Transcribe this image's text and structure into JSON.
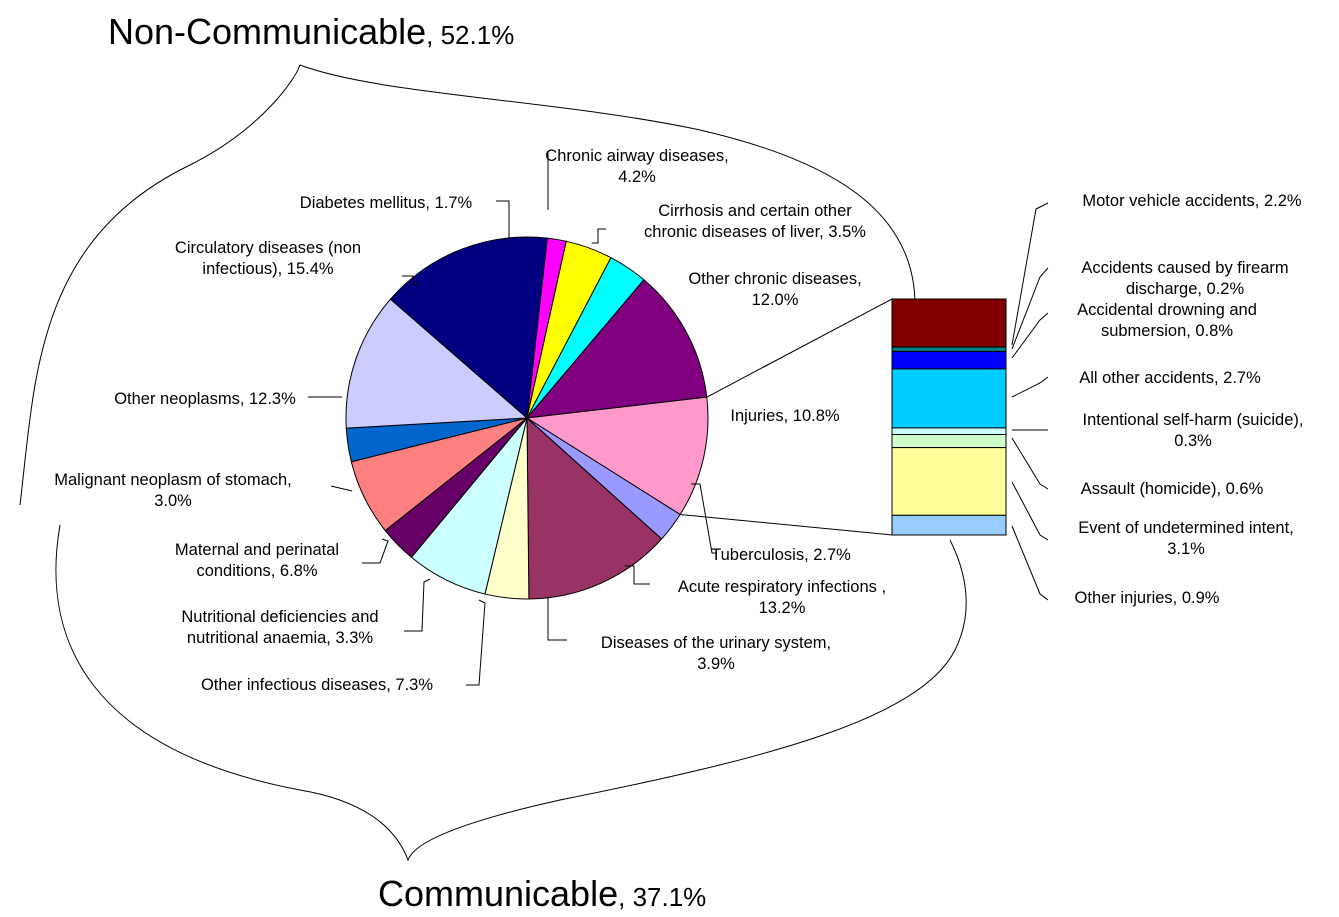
{
  "chart_data": {
    "type": "pie",
    "group_labels": {
      "non_communicable": {
        "name": "Non-Communicable",
        "value": "52.1%"
      },
      "communicable": {
        "name": "Communicable",
        "value": "37.1%"
      }
    },
    "pie": {
      "slices": [
        {
          "name": "Diabetes mellitus",
          "value": 1.7,
          "text": "1.7%",
          "color": "#FF00FF"
        },
        {
          "name": "Chronic airway diseases",
          "value": 4.2,
          "text": "4.2%",
          "color": "#FFFF00"
        },
        {
          "name": "Cirrhosis and certain other chronic diseases of liver",
          "value": 3.5,
          "text": "3.5%",
          "color": "#00FFFF"
        },
        {
          "name": "Other chronic diseases",
          "value": 12.0,
          "text": "12.0%",
          "color": "#800080"
        },
        {
          "name": "Injuries",
          "value": 10.8,
          "text": "10.8%",
          "color": "#FF99CC"
        },
        {
          "name": "Tuberculosis",
          "value": 2.7,
          "text": "2.7%",
          "color": "#9999FF"
        },
        {
          "name": "Acute respiratory infections",
          "value": 13.2,
          "text": "13.2%",
          "color": "#993366"
        },
        {
          "name": "Diseases of the urinary system",
          "value": 3.9,
          "text": "3.9%",
          "color": "#FFFFCC"
        },
        {
          "name": "Other infectious diseases",
          "value": 7.3,
          "text": "7.3%",
          "color": "#CCFFFF"
        },
        {
          "name": "Nutritional deficiencies and nutritional anaemia",
          "value": 3.3,
          "text": "3.3%",
          "color": "#660066"
        },
        {
          "name": "Maternal and perinatal conditions",
          "value": 6.8,
          "text": "6.8%",
          "color": "#FF8080"
        },
        {
          "name": "Malignant neoplasm of stomach",
          "value": 3.0,
          "text": "3.0%",
          "color": "#0066CC"
        },
        {
          "name": "Other neoplasms",
          "value": 12.3,
          "text": "12.3%",
          "color": "#CCCCFF"
        },
        {
          "name": "Circulatory diseases (non infectious)",
          "value": 15.4,
          "text": "15.4%",
          "color": "#000080"
        }
      ]
    },
    "bar": {
      "parent": "Injuries",
      "segments": [
        {
          "name": "Motor vehicle accidents",
          "value": 2.2,
          "text": "2.2%",
          "color": "#800000"
        },
        {
          "name": "Accidents caused by firearm discharge",
          "value": 0.2,
          "text": "0.2%",
          "color": "#008080"
        },
        {
          "name": "Accidental drowning and submersion",
          "value": 0.8,
          "text": "0.8%",
          "color": "#0000FF"
        },
        {
          "name": "All other accidents",
          "value": 2.7,
          "text": "2.7%",
          "color": "#00CCFF"
        },
        {
          "name": "Intentional self-harm (suicide)",
          "value": 0.3,
          "text": "0.3%",
          "color": "#CCFFFF"
        },
        {
          "name": "Assault (homicide)",
          "value": 0.6,
          "text": "0.6%",
          "color": "#CCFFCC"
        },
        {
          "name": "Event of undetermined intent",
          "value": 3.1,
          "text": "3.1%",
          "color": "#FFFF99"
        },
        {
          "name": "Other injuries",
          "value": 0.9,
          "text": "0.9%",
          "color": "#99CCFF"
        }
      ]
    },
    "pie_labels": [
      {
        "lines": [
          "Diabetes mellitus, 1.7%"
        ]
      },
      {
        "lines": [
          "Chronic airway diseases,",
          "4.2%"
        ]
      },
      {
        "lines": [
          "Cirrhosis and certain other",
          "chronic diseases of liver, 3.5%"
        ]
      },
      {
        "lines": [
          "Other chronic diseases,",
          "12.0%"
        ]
      },
      {
        "lines": [
          "Injuries, 10.8%"
        ]
      },
      {
        "lines": [
          "Tuberculosis, 2.7%"
        ]
      },
      {
        "lines": [
          "Acute respiratory infections ,",
          "13.2%"
        ]
      },
      {
        "lines": [
          "Diseases of the urinary system,",
          "3.9%"
        ]
      },
      {
        "lines": [
          "Other infectious diseases, 7.3%"
        ]
      },
      {
        "lines": [
          "Nutritional deficiencies and",
          "nutritional anaemia, 3.3%"
        ]
      },
      {
        "lines": [
          "Maternal and perinatal",
          "conditions, 6.8%"
        ]
      },
      {
        "lines": [
          "Malignant neoplasm of stomach,",
          "3.0%"
        ]
      },
      {
        "lines": [
          "Other neoplasms, 12.3%"
        ]
      },
      {
        "lines": [
          "Circulatory diseases (non",
          "infectious), 15.4%"
        ]
      }
    ],
    "bar_labels": [
      {
        "lines": [
          "Motor vehicle accidents, 2.2%"
        ]
      },
      {
        "lines": [
          "Accidents caused by firearm",
          "discharge, 0.2%"
        ]
      },
      {
        "lines": [
          "Accidental drowning and",
          "submersion, 0.8%"
        ]
      },
      {
        "lines": [
          "All other accidents, 2.7%"
        ]
      },
      {
        "lines": [
          "Intentional self-harm (suicide),",
          "0.3%"
        ]
      },
      {
        "lines": [
          "Assault (homicide), 0.6%"
        ]
      },
      {
        "lines": [
          "Event of undetermined intent,",
          "3.1%"
        ]
      },
      {
        "lines": [
          "Other injuries, 0.9%"
        ]
      }
    ]
  }
}
